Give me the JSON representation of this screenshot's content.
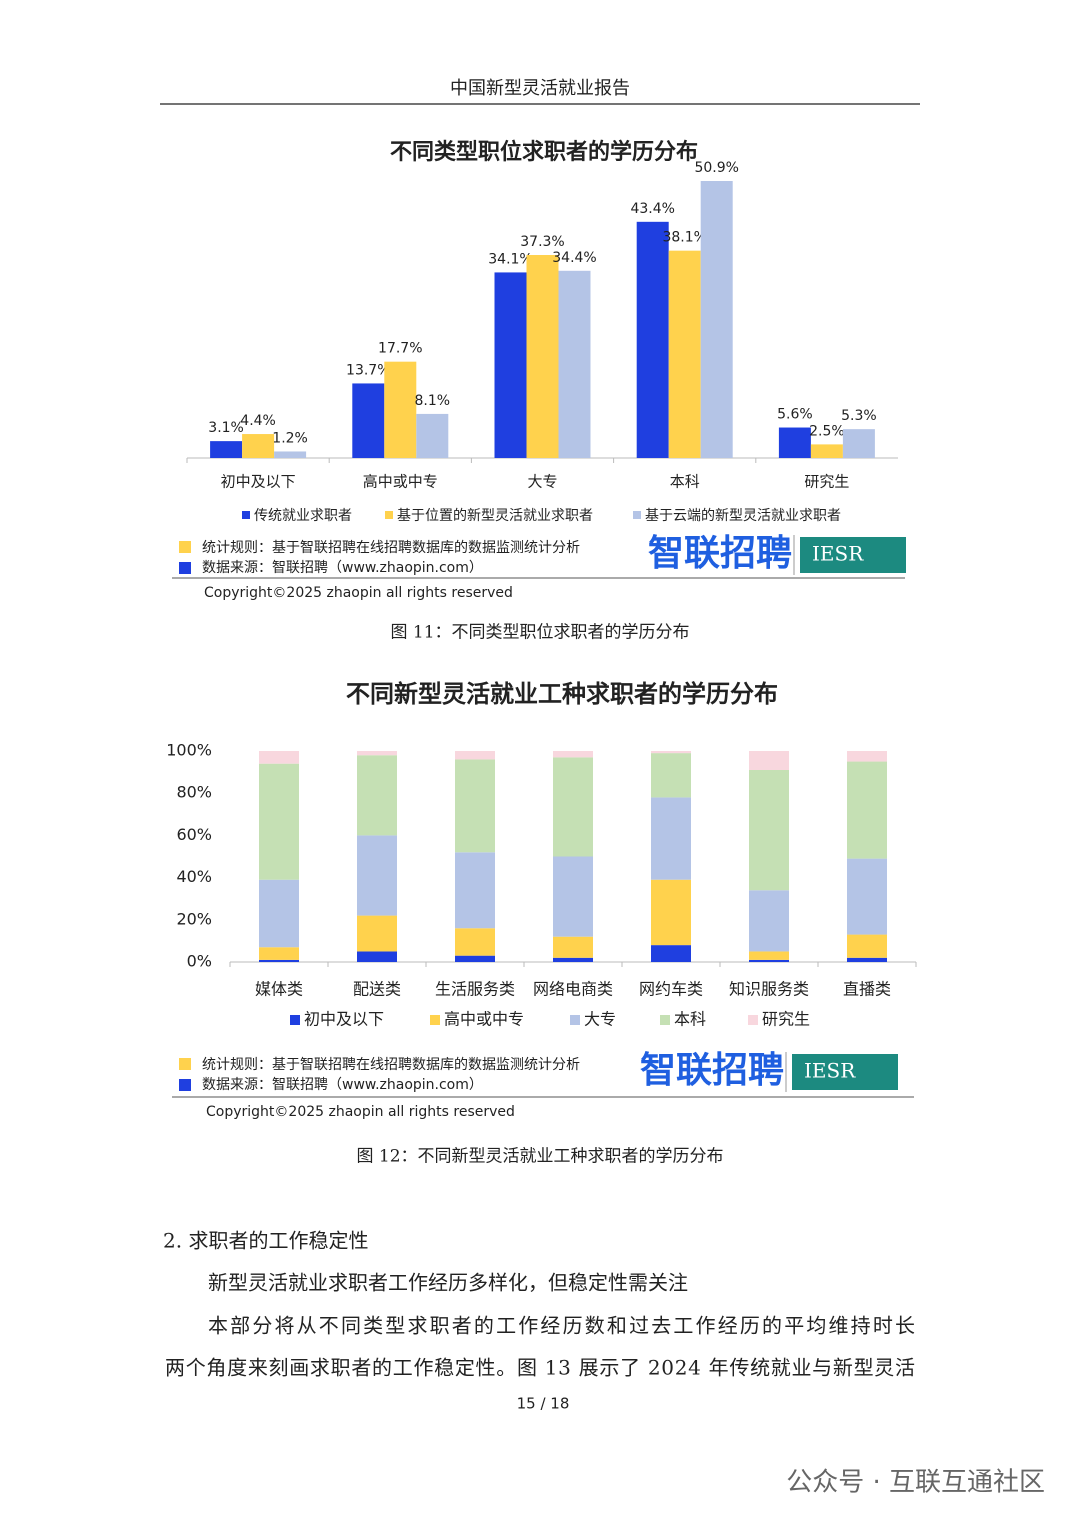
{
  "header": {
    "title": "中国新型灵活就业报告"
  },
  "chart_data": [
    {
      "type": "bar",
      "title": "不同类型职位求职者的学历分布",
      "categories": [
        "初中及以下",
        "高中或中专",
        "大专",
        "本科",
        "研究生"
      ],
      "series": [
        {
          "name": "传统就业求职者",
          "color": "#1f3fe0",
          "values": [
            3.1,
            13.7,
            34.1,
            43.4,
            5.6
          ],
          "value_labels": [
            "3.1%",
            "13.7%",
            "34.1%",
            "43.4%",
            "5.6%"
          ]
        },
        {
          "name": "基于位置的新型灵活就业求职者",
          "color": "#ffd24d",
          "values": [
            4.4,
            17.7,
            37.3,
            38.1,
            2.5
          ],
          "value_labels": [
            "4.4%",
            "17.7%",
            "37.3%",
            "38.1%",
            "2.5%"
          ]
        },
        {
          "name": "基于云端的新型灵活就业求职者",
          "color": "#b4c4e6",
          "values": [
            1.2,
            8.1,
            34.4,
            50.9,
            5.3
          ],
          "value_labels": [
            "1.2%",
            "8.1%",
            "34.4%",
            "50.9%",
            "5.3%"
          ]
        }
      ],
      "notes": {
        "rule": "统计规则：基于智联招聘在线招聘数据库的数据监测统计分析",
        "source": "数据来源：智联招聘（www.zhaopin.com）"
      },
      "logos": [
        "智联招聘",
        "IESR"
      ],
      "copyright": "Copyright©2025 zhaopin all rights reserved",
      "caption": "图 11：不同类型职位求职者的学历分布"
    },
    {
      "type": "stacked_bar",
      "title": "不同新型灵活就业工种求职者的学历分布",
      "categories": [
        "媒体类",
        "配送类",
        "生活服务类",
        "网络电商类",
        "网约车类",
        "知识服务类",
        "直播类"
      ],
      "series": [
        {
          "name": "初中及以下",
          "color": "#1f3fe0",
          "values": [
            1,
            5,
            3,
            2,
            8,
            1,
            2
          ]
        },
        {
          "name": "高中或中专",
          "color": "#ffd24d",
          "values": [
            6,
            17,
            13,
            10,
            31,
            4,
            11
          ]
        },
        {
          "name": "大专",
          "color": "#b4c4e6",
          "values": [
            32,
            38,
            36,
            38,
            39,
            29,
            36
          ]
        },
        {
          "name": "本科",
          "color": "#c5e0b4",
          "values": [
            55,
            38,
            44,
            47,
            21,
            57,
            46
          ]
        },
        {
          "name": "研究生",
          "color": "#f8d7de",
          "values": [
            6,
            2,
            4,
            3,
            1,
            9,
            5
          ]
        }
      ],
      "ylim": [
        0,
        100
      ],
      "yticks": [
        {
          "value": 0,
          "label": "0%"
        },
        {
          "value": 20,
          "label": "20%"
        },
        {
          "value": 40,
          "label": "40%"
        },
        {
          "value": 60,
          "label": "60%"
        },
        {
          "value": 80,
          "label": "80%"
        },
        {
          "value": 100,
          "label": "100%"
        }
      ],
      "notes": {
        "rule": "统计规则：基于智联招聘在线招聘数据库的数据监测统计分析",
        "source": "数据来源：智联招聘（www.zhaopin.com）"
      },
      "logos": [
        "智联招聘",
        "IESR"
      ],
      "copyright": "Copyright©2025 zhaopin all rights reserved",
      "caption": "图 12：不同新型灵活就业工种求职者的学历分布"
    }
  ],
  "section": {
    "heading": "2. 求职者的工作稳定性",
    "subheading": "新型灵活就业求职者工作经历多样化，但稳定性需关注",
    "paragraph": [
      "本部分将从不同类型求职者的工作经历数和过去工作经历的平均维持时长",
      "两个角度来刻画求职者的工作稳定性。图 13 展示了 2024 年传统就业与新型灵活"
    ]
  },
  "page_number": "15 / 18",
  "footer": "公众号 · 互联互通社区"
}
